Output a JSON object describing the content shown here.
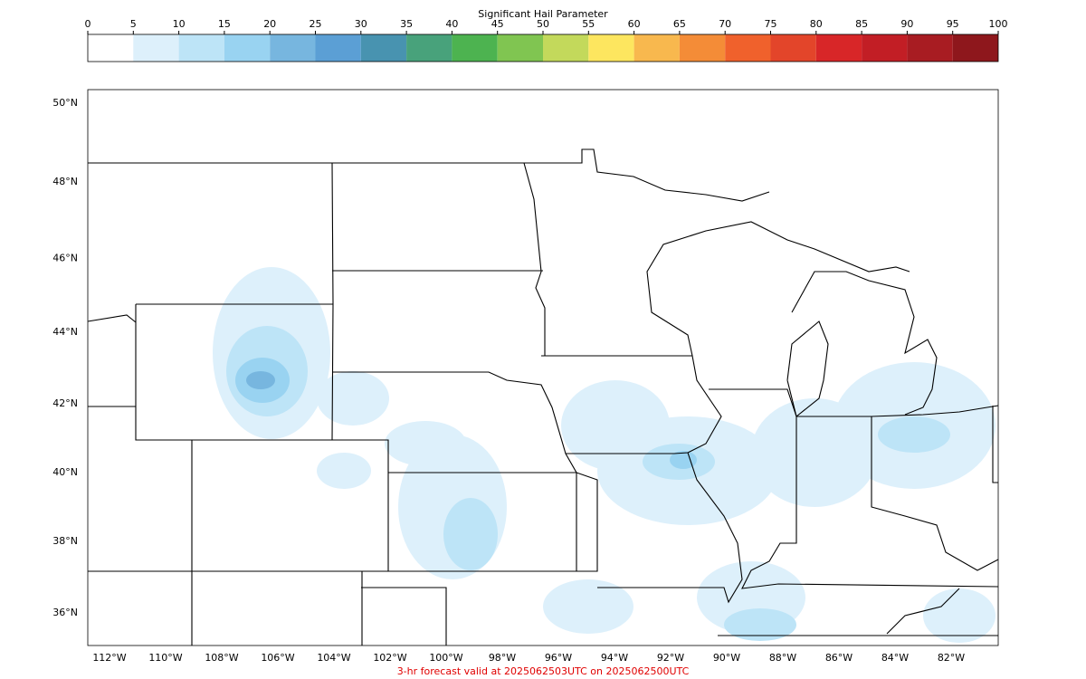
{
  "colorbar": {
    "title": "Significant Hail Parameter",
    "ticks": [
      0,
      5,
      10,
      15,
      20,
      25,
      30,
      35,
      40,
      45,
      50,
      55,
      60,
      65,
      70,
      75,
      80,
      85,
      90,
      95,
      100
    ],
    "colors": [
      "#ffffff",
      "#ddf0fb",
      "#bde4f7",
      "#99d3f1",
      "#77b6df",
      "#5b9fd5",
      "#4893b0",
      "#48a27b",
      "#4db350",
      "#80c551",
      "#c3d95b",
      "#fde65f",
      "#f8b84e",
      "#f48c37",
      "#f0612c",
      "#e3452a",
      "#d82628",
      "#c21e25",
      "#a81c22",
      "#8e171c"
    ]
  },
  "map": {
    "lat_ticks": [
      {
        "value": 50,
        "label": "50°N"
      },
      {
        "value": 48,
        "label": "48°N"
      },
      {
        "value": 46,
        "label": "46°N"
      },
      {
        "value": 44,
        "label": "44°N"
      },
      {
        "value": 42,
        "label": "42°N"
      },
      {
        "value": 40,
        "label": "40°N"
      },
      {
        "value": 38,
        "label": "38°N"
      },
      {
        "value": 36,
        "label": "36°N"
      }
    ],
    "lon_ticks": [
      {
        "value": -112,
        "label": "112°W"
      },
      {
        "value": -110,
        "label": "110°W"
      },
      {
        "value": -108,
        "label": "108°W"
      },
      {
        "value": -106,
        "label": "106°W"
      },
      {
        "value": -104,
        "label": "104°W"
      },
      {
        "value": -102,
        "label": "102°W"
      },
      {
        "value": -100,
        "label": "100°W"
      },
      {
        "value": -98,
        "label": "98°W"
      },
      {
        "value": -96,
        "label": "96°W"
      },
      {
        "value": -94,
        "label": "94°W"
      },
      {
        "value": -92,
        "label": "92°W"
      },
      {
        "value": -90,
        "label": "90°W"
      },
      {
        "value": -88,
        "label": "88°W"
      },
      {
        "value": -86,
        "label": "86°W"
      },
      {
        "value": -84,
        "label": "84°W"
      },
      {
        "value": -82,
        "label": "82°W"
      }
    ],
    "footer": "3-hr forecast valid at 2025062503UTC on 2025062500UTC"
  }
}
